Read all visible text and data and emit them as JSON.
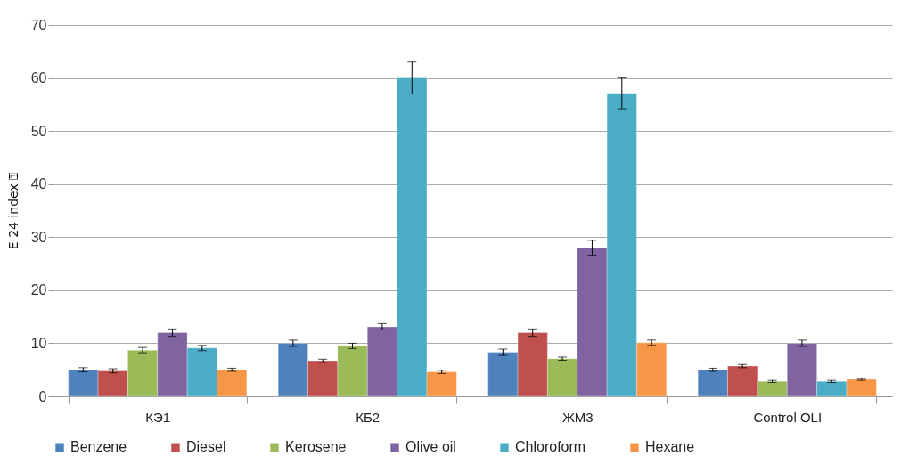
{
  "chart_data": {
    "type": "bar",
    "ylabel": "E 24 index ⍰",
    "categories": [
      "КЭ1",
      "КБ2",
      "ЖМ3",
      "Control OLI"
    ],
    "series": [
      {
        "name": "Benzene",
        "color": "#4f81bd",
        "values": [
          5,
          10,
          8.3,
          5
        ],
        "errors": [
          0.4,
          0.6,
          0.6,
          0.3
        ]
      },
      {
        "name": "Diesel",
        "color": "#c0504d",
        "values": [
          4.8,
          6.7,
          12,
          5.7
        ],
        "errors": [
          0.4,
          0.3,
          0.7,
          0.3
        ]
      },
      {
        "name": "Kerosene",
        "color": "#9bbb59",
        "values": [
          8.7,
          9.5,
          7.1,
          2.8
        ],
        "errors": [
          0.5,
          0.5,
          0.3,
          0.2
        ]
      },
      {
        "name": "Olive oil",
        "color": "#8064a2",
        "values": [
          12,
          13.1,
          28,
          10
        ],
        "errors": [
          0.7,
          0.6,
          1.4,
          0.6
        ]
      },
      {
        "name": "Chloroform",
        "color": "#4bacc6",
        "values": [
          9.1,
          60,
          57.1,
          2.8
        ],
        "errors": [
          0.5,
          3,
          2.9,
          0.2
        ]
      },
      {
        "name": "Hexane",
        "color": "#f79646",
        "values": [
          5,
          4.6,
          10.1,
          3.2
        ],
        "errors": [
          0.3,
          0.3,
          0.5,
          0.2
        ]
      }
    ],
    "ylim": [
      0,
      70
    ],
    "yticks": [
      0,
      10,
      20,
      30,
      40,
      50,
      60,
      70
    ],
    "grid": "y",
    "legend": "bottom"
  }
}
